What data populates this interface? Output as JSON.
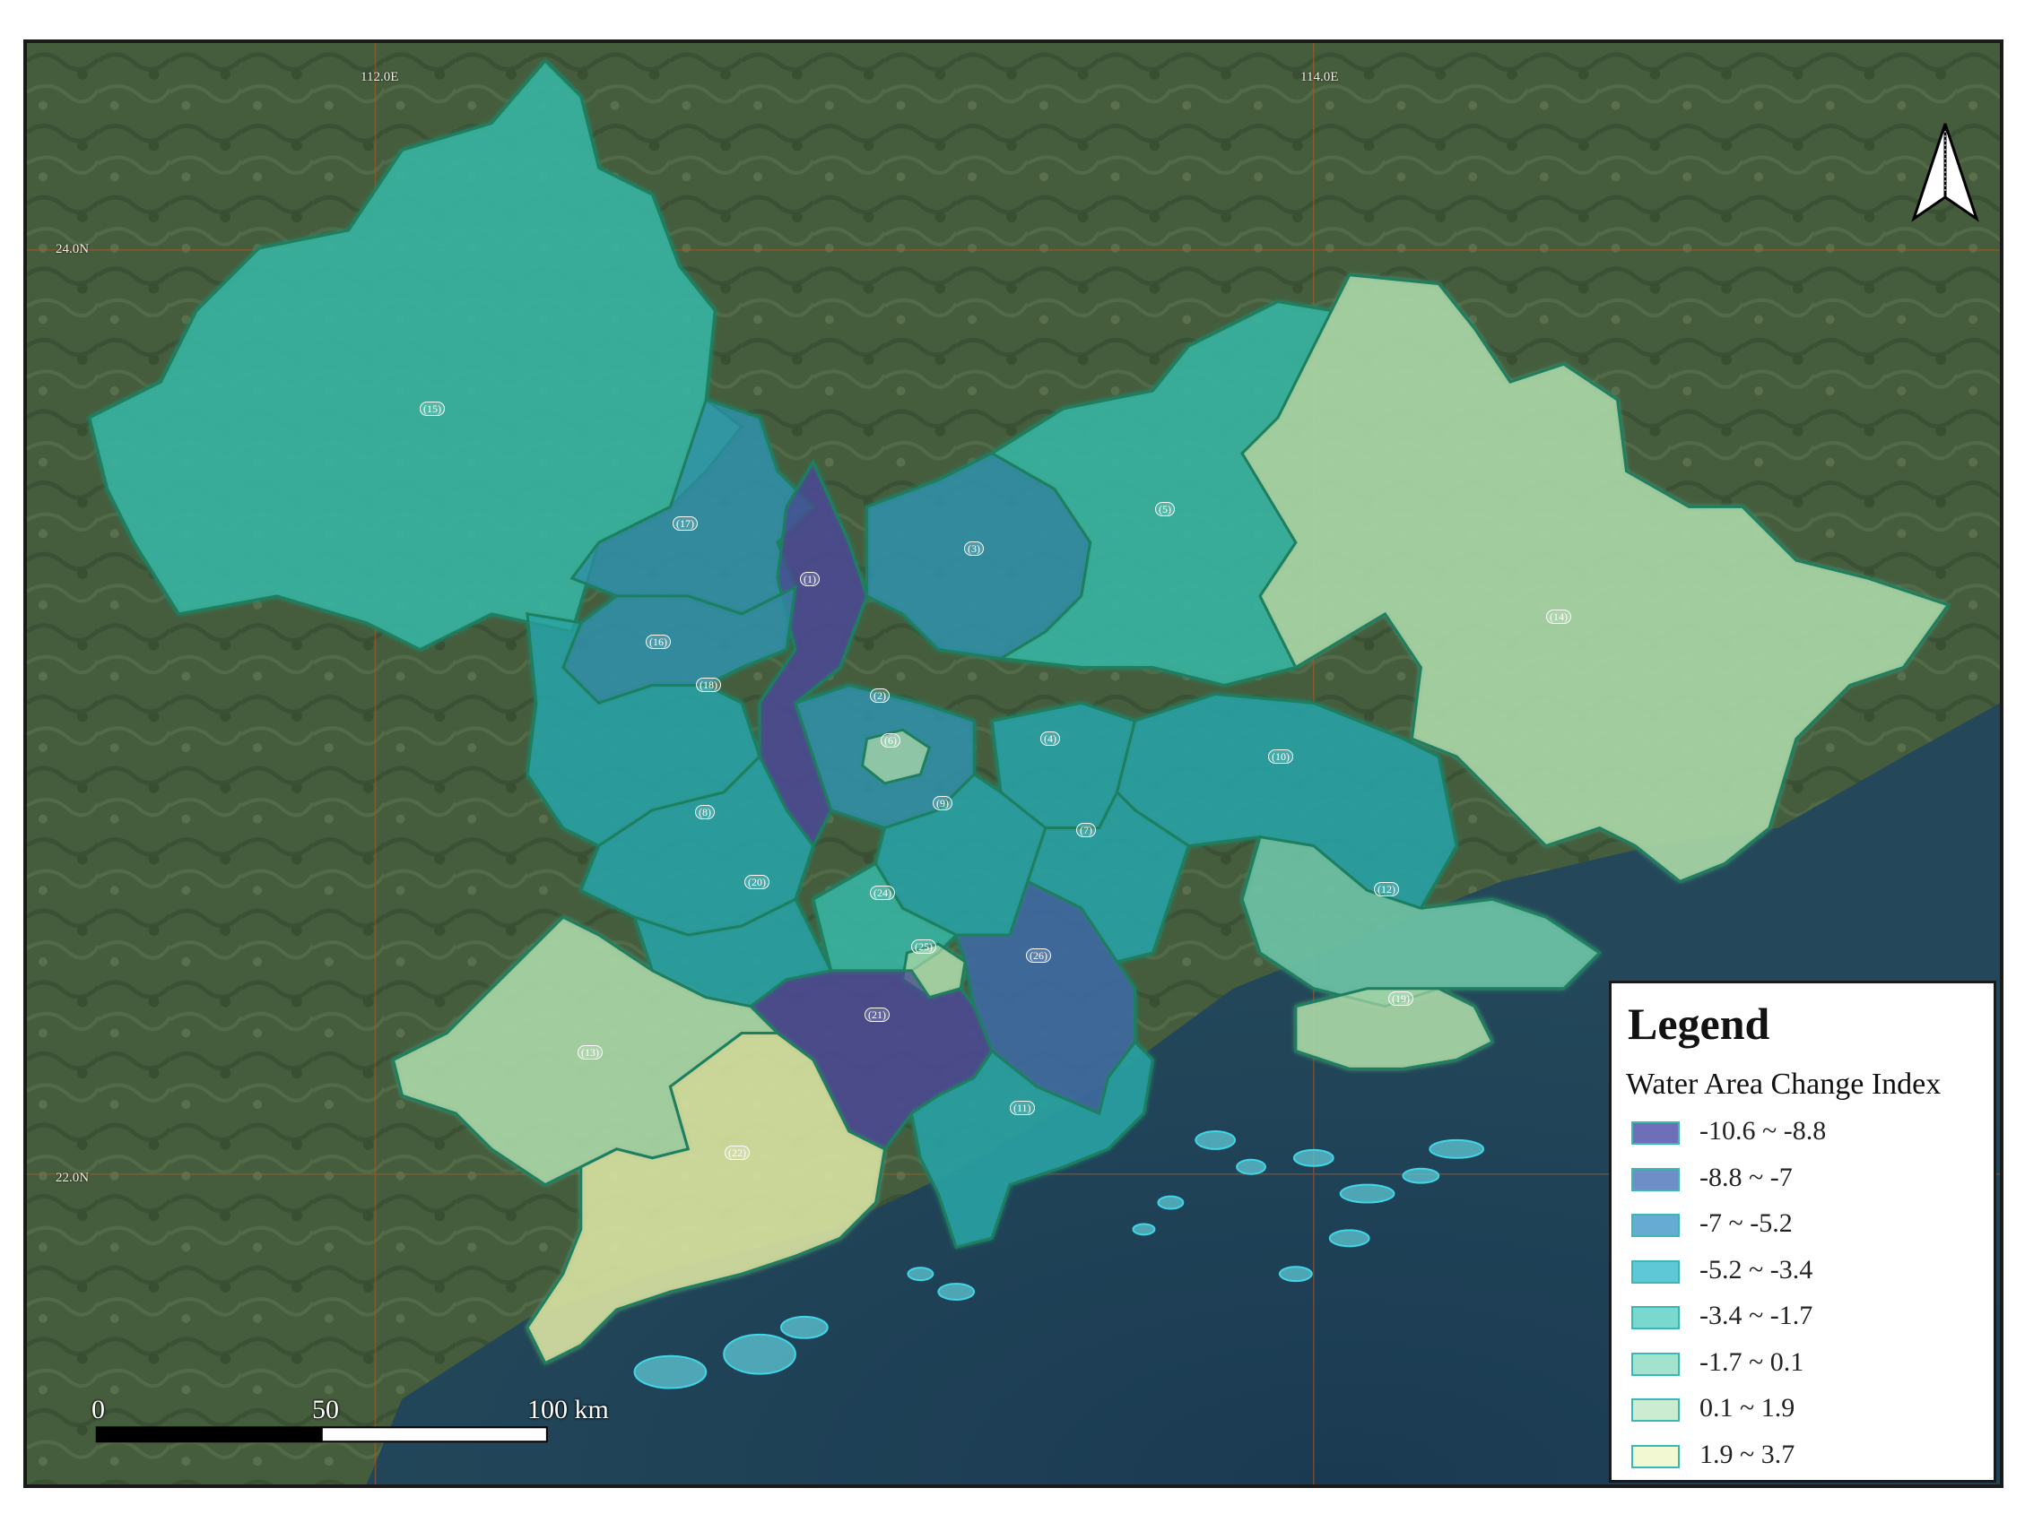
{
  "graticule": {
    "lon_labels": [
      "112.0E",
      "114.0E"
    ],
    "lat_labels": [
      "24.0N",
      "22.0N"
    ]
  },
  "regions": [
    {
      "id": "r1",
      "label": "(15)",
      "class": 4
    },
    {
      "id": "r2",
      "label": "(17)",
      "class": 2
    },
    {
      "id": "r3",
      "label": "(1)",
      "class": 0
    },
    {
      "id": "r4",
      "label": "(3)",
      "class": 2
    },
    {
      "id": "r5",
      "label": "(5)",
      "class": 4
    },
    {
      "id": "r6",
      "label": "(14)",
      "class": 6
    },
    {
      "id": "r7",
      "label": "(16)",
      "class": 2
    },
    {
      "id": "r8",
      "label": "(18)",
      "class": 3
    },
    {
      "id": "r9",
      "label": "(2)",
      "class": 2
    },
    {
      "id": "r10",
      "label": "(8)",
      "class": 3
    },
    {
      "id": "r11",
      "label": "(4)",
      "class": 3
    },
    {
      "id": "r12",
      "label": "(9)",
      "class": 3
    },
    {
      "id": "r13",
      "label": "(10)",
      "class": 3
    },
    {
      "id": "r14",
      "label": "(7)",
      "class": 3
    },
    {
      "id": "r15",
      "label": "(12)",
      "class": 5
    },
    {
      "id": "r16",
      "label": "(20)",
      "class": 3
    },
    {
      "id": "r17",
      "label": "(24)",
      "class": 4
    },
    {
      "id": "r18",
      "label": "(6)",
      "class": 6
    },
    {
      "id": "r19",
      "label": "(25)",
      "class": 6
    },
    {
      "id": "r20",
      "label": "(26)",
      "class": 1
    },
    {
      "id": "r21",
      "label": "(21)",
      "class": 0
    },
    {
      "id": "r22",
      "label": "(11)",
      "class": 3
    },
    {
      "id": "r23",
      "label": "(19)",
      "class": 6
    },
    {
      "id": "r24",
      "label": "(13)",
      "class": 6
    },
    {
      "id": "r25",
      "label": "(22)",
      "class": 7
    }
  ],
  "scale_bar": {
    "labels": [
      "0",
      "50",
      "100 km"
    ]
  },
  "legend": {
    "title": "Legend",
    "subtitle": "Water Area Change Index",
    "items": [
      {
        "label": "-10.6 ~ -8.8",
        "color": "#6e6fb8"
      },
      {
        "label": "-8.8 ~ -7",
        "color": "#6d8ec6"
      },
      {
        "label": "-7 ~ -5.2",
        "color": "#66abd2"
      },
      {
        "label": "-5.2 ~ -3.4",
        "color": "#5fc8d6"
      },
      {
        "label": "-3.4 ~ -1.7",
        "color": "#79d9cf"
      },
      {
        "label": "-1.7 ~ 0.1",
        "color": "#a3e2cc"
      },
      {
        "label": "0.1 ~ 1.9",
        "color": "#cbecd0"
      },
      {
        "label": "1.9 ~ 3.7",
        "color": "#f1f8d2"
      }
    ]
  },
  "map_fill_colors": [
    "#4a4a8f",
    "#3f6aa0",
    "#2f8ea4",
    "#2aa0a2",
    "#38b3a0",
    "#6dc2a6",
    "#a9d5a6",
    "#d6dfa0"
  ]
}
